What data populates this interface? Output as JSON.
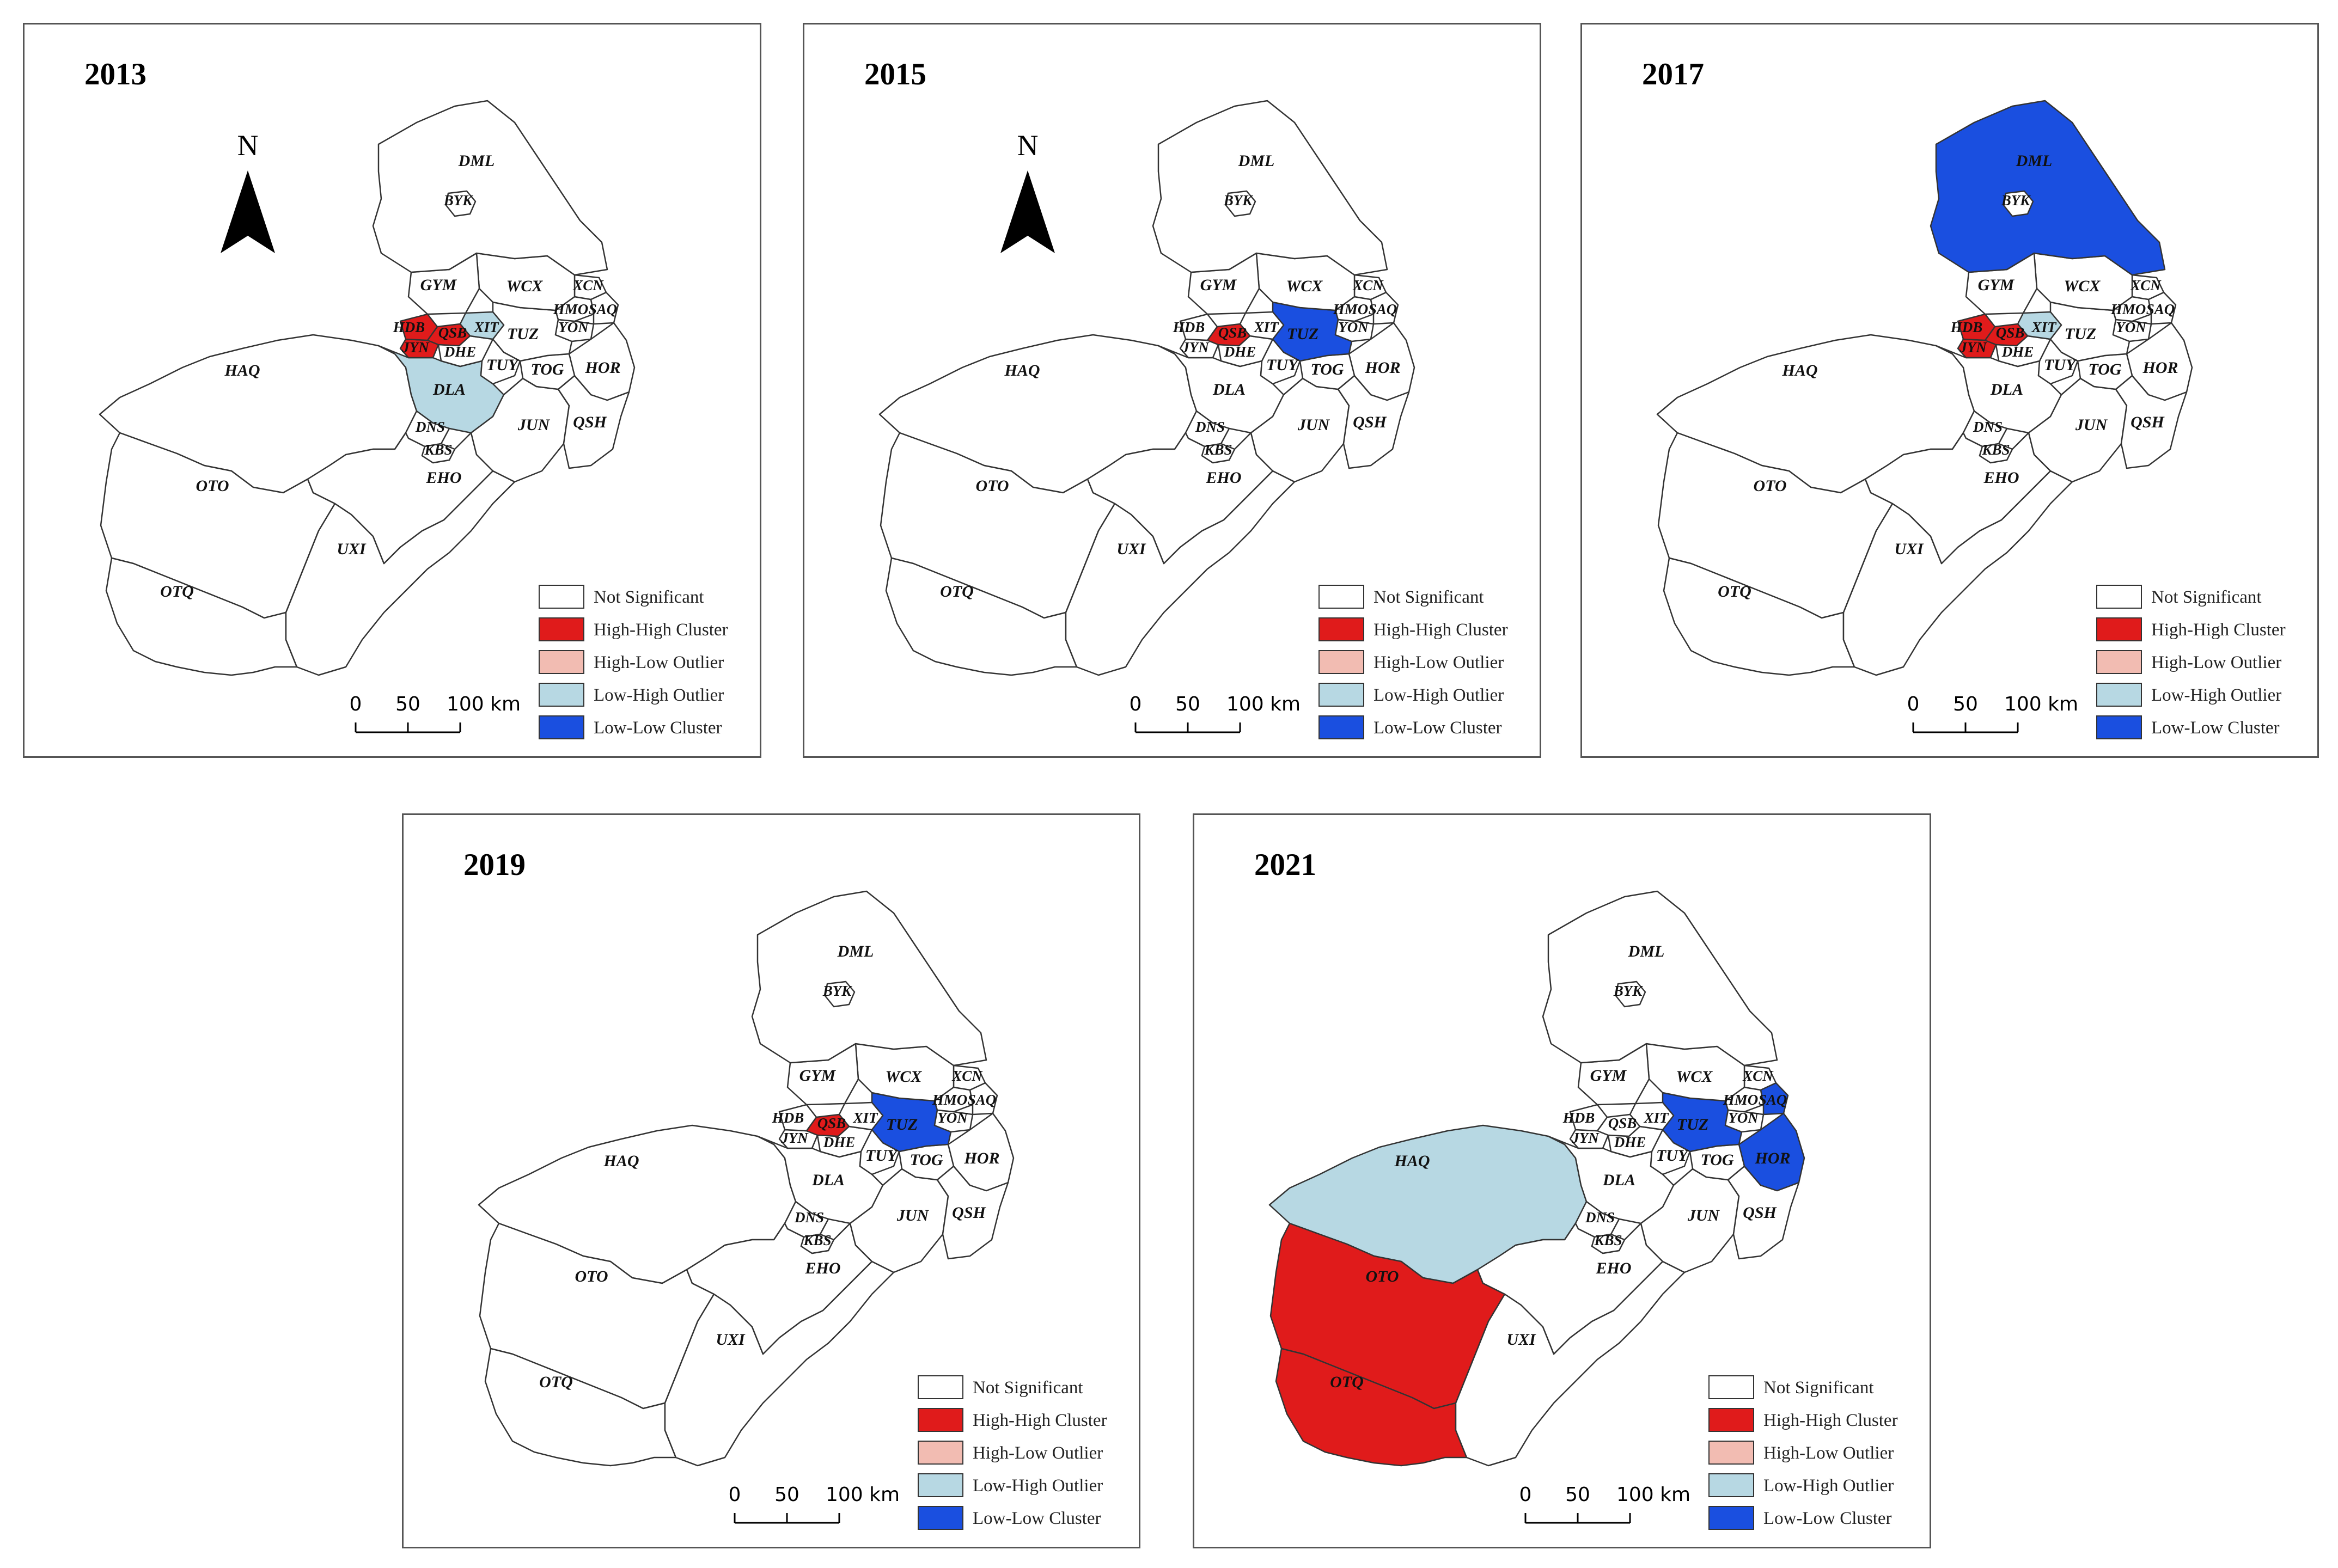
{
  "colors": {
    "not_significant": "#ffffff",
    "high_high": "#e01b1b",
    "high_low": "#f2bcb2",
    "low_high": "#b7d8e3",
    "low_low": "#1a4fe0"
  },
  "legend": {
    "not_significant": "Not Significant",
    "high_high": "High-High Cluster",
    "high_low": "High-Low Outlier",
    "low_high": "Low-High Outlier",
    "low_low": "Low-Low Cluster"
  },
  "scale": {
    "zero": "0",
    "mid": "50",
    "end": "100 km"
  },
  "north": {
    "label": "N",
    "icon": "north-arrow-icon"
  },
  "region_labels": {
    "DML": "DML",
    "BYK": "BYK",
    "GYM": "GYM",
    "WCX": "WCX",
    "XCN": "XCN",
    "HMO": "HMO",
    "SAQ": "SAQ",
    "YON": "YON",
    "HDB": "HDB",
    "QSB": "QSB",
    "XIT": "XIT",
    "TUZ": "TUZ",
    "JYN": "JYN",
    "DHE": "DHE",
    "TUY": "TUY",
    "TOG": "TOG",
    "HOR": "HOR",
    "HAQ": "HAQ",
    "DLA": "DLA",
    "DNS": "DNS",
    "KBS": "KBS",
    "JUN": "JUN",
    "QSH": "QSH",
    "EHO": "EHO",
    "OTO": "OTO",
    "UXI": "UXI",
    "OTQ": "OTQ"
  },
  "panels": [
    {
      "year": "2013",
      "show_north": true,
      "high_high": [
        "HDB",
        "QSB",
        "JYN"
      ],
      "low_high": [
        "XIT",
        "DLA"
      ],
      "low_low": []
    },
    {
      "year": "2015",
      "show_north": true,
      "high_high": [
        "QSB"
      ],
      "low_high": [],
      "low_low": [
        "TUZ"
      ]
    },
    {
      "year": "2017",
      "show_north": false,
      "high_high": [
        "HDB",
        "QSB",
        "JYN"
      ],
      "low_high": [
        "XIT"
      ],
      "low_low": [
        "DML"
      ]
    },
    {
      "year": "2019",
      "show_north": false,
      "high_high": [
        "QSB"
      ],
      "low_high": [],
      "low_low": [
        "TUZ"
      ]
    },
    {
      "year": "2021",
      "show_north": false,
      "high_high": [
        "OTO",
        "OTQ"
      ],
      "low_high": [
        "HAQ"
      ],
      "low_low": [
        "TUZ",
        "SAQ",
        "HOR"
      ]
    }
  ]
}
